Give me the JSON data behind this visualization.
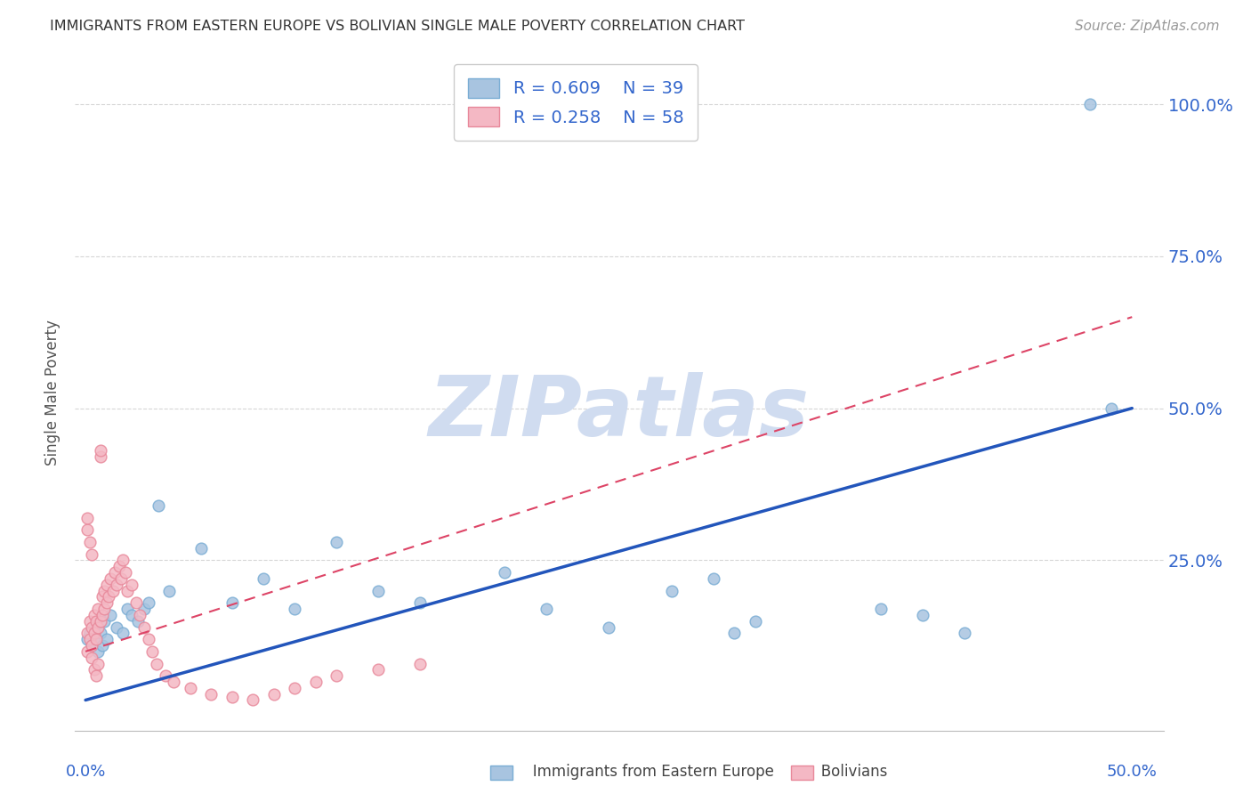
{
  "title": "IMMIGRANTS FROM EASTERN EUROPE VS BOLIVIAN SINGLE MALE POVERTY CORRELATION CHART",
  "source": "Source: ZipAtlas.com",
  "ylabel": "Single Male Poverty",
  "blue_color": "#A8C4E0",
  "blue_edge_color": "#7AADD4",
  "pink_color": "#F4B8C4",
  "pink_edge_color": "#E8889A",
  "blue_line_color": "#2255BB",
  "pink_line_color": "#DD4466",
  "axis_label_color": "#3366CC",
  "watermark_color": "#D0DCF0",
  "watermark_text": "ZIPatlas",
  "background_color": "#FFFFFF",
  "grid_color": "#CCCCCC",
  "title_color": "#333333",
  "source_color": "#999999",
  "legend_text_color": "#3366CC",
  "legend_r1": "R = 0.609",
  "legend_n1": "N = 39",
  "legend_r2": "R = 0.258",
  "legend_n2": "N = 58",
  "blue_line_x0": 0.0,
  "blue_line_y0": 0.02,
  "blue_line_x1": 0.5,
  "blue_line_y1": 0.5,
  "pink_line_x0": 0.0,
  "pink_line_y0": 0.1,
  "pink_line_x1": 0.5,
  "pink_line_y1": 0.65,
  "xlim_min": -0.005,
  "xlim_max": 0.515,
  "ylim_min": -0.03,
  "ylim_max": 1.08,
  "blue_x": [
    0.001,
    0.002,
    0.003,
    0.004,
    0.005,
    0.006,
    0.007,
    0.008,
    0.009,
    0.01,
    0.012,
    0.015,
    0.018,
    0.02,
    0.022,
    0.025,
    0.028,
    0.03,
    0.035,
    0.04,
    0.055,
    0.07,
    0.085,
    0.1,
    0.12,
    0.14,
    0.16,
    0.2,
    0.22,
    0.25,
    0.28,
    0.3,
    0.31,
    0.32,
    0.38,
    0.4,
    0.42,
    0.48,
    0.49
  ],
  "blue_y": [
    0.12,
    0.13,
    0.11,
    0.14,
    0.12,
    0.1,
    0.13,
    0.11,
    0.15,
    0.12,
    0.16,
    0.14,
    0.13,
    0.17,
    0.16,
    0.15,
    0.17,
    0.18,
    0.34,
    0.2,
    0.27,
    0.18,
    0.22,
    0.17,
    0.28,
    0.2,
    0.18,
    0.23,
    0.17,
    0.14,
    0.2,
    0.22,
    0.13,
    0.15,
    0.17,
    0.16,
    0.13,
    1.0,
    0.5
  ],
  "pink_x": [
    0.001,
    0.001,
    0.002,
    0.002,
    0.003,
    0.003,
    0.004,
    0.004,
    0.005,
    0.005,
    0.006,
    0.006,
    0.007,
    0.007,
    0.007,
    0.008,
    0.008,
    0.009,
    0.009,
    0.01,
    0.01,
    0.011,
    0.012,
    0.013,
    0.014,
    0.015,
    0.016,
    0.017,
    0.018,
    0.019,
    0.02,
    0.022,
    0.024,
    0.026,
    0.028,
    0.03,
    0.032,
    0.034,
    0.038,
    0.042,
    0.05,
    0.06,
    0.07,
    0.08,
    0.09,
    0.1,
    0.11,
    0.12,
    0.14,
    0.16,
    0.001,
    0.001,
    0.002,
    0.003,
    0.003,
    0.004,
    0.005,
    0.006
  ],
  "pink_y": [
    0.1,
    0.13,
    0.12,
    0.15,
    0.11,
    0.14,
    0.13,
    0.16,
    0.12,
    0.15,
    0.14,
    0.17,
    0.42,
    0.43,
    0.15,
    0.16,
    0.19,
    0.17,
    0.2,
    0.18,
    0.21,
    0.19,
    0.22,
    0.2,
    0.23,
    0.21,
    0.24,
    0.22,
    0.25,
    0.23,
    0.2,
    0.21,
    0.18,
    0.16,
    0.14,
    0.12,
    0.1,
    0.08,
    0.06,
    0.05,
    0.04,
    0.03,
    0.025,
    0.02,
    0.03,
    0.04,
    0.05,
    0.06,
    0.07,
    0.08,
    0.3,
    0.32,
    0.28,
    0.26,
    0.09,
    0.07,
    0.06,
    0.08
  ]
}
